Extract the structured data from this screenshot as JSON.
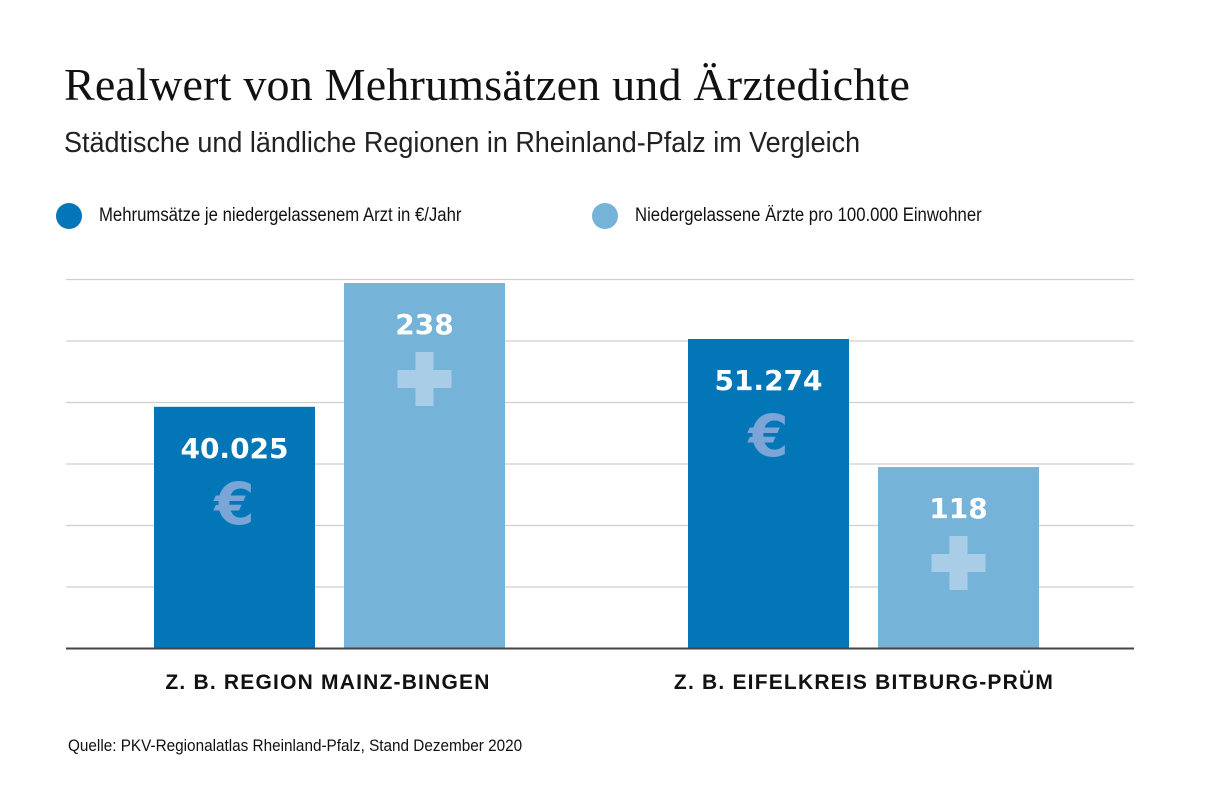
{
  "header": {
    "title": "Realwert von Mehrumsätzen und Ärztedichte",
    "subtitle": "Städtische und ländliche Regionen in Rheinland-Pfalz im Vergleich"
  },
  "source": "Quelle: PKV-Regionalatlas Rheinland-Pfalz, Stand Dezember 2020",
  "chart_data": {
    "type": "bar",
    "title": "Realwert von Mehrumsätzen und Ärztedichte",
    "subtitle": "Städtische und ländliche Regionen in Rheinland-Pfalz im Vergleich",
    "categories": [
      "Z. B. REGION MAINZ-BINGEN",
      "Z. B. EIFELKREIS BITBURG-PRÜM"
    ],
    "series": [
      {
        "name": "Mehrumsätze je niedergelassenem Arzt in €/Jahr",
        "values": [
          40025,
          51274
        ],
        "labels": [
          "40.025",
          "51.274"
        ],
        "color": "#0376b8",
        "icon": "euro-icon",
        "icon_glyph": "€",
        "icon_color": "#7aa5d6"
      },
      {
        "name": "Niedergelassene Ärzte pro 100.000 Einwohner",
        "values": [
          238,
          118
        ],
        "labels": [
          "238",
          "118"
        ],
        "color": "#76b3d8",
        "icon": "medical-cross-icon",
        "icon_color": "#a9cde7"
      }
    ],
    "xlabel": "",
    "ylabel": "",
    "y_axis_labels": false,
    "independent_scales_per_series": true,
    "gridlines": true,
    "gridline_count": 6,
    "legend_position": "top-left"
  }
}
